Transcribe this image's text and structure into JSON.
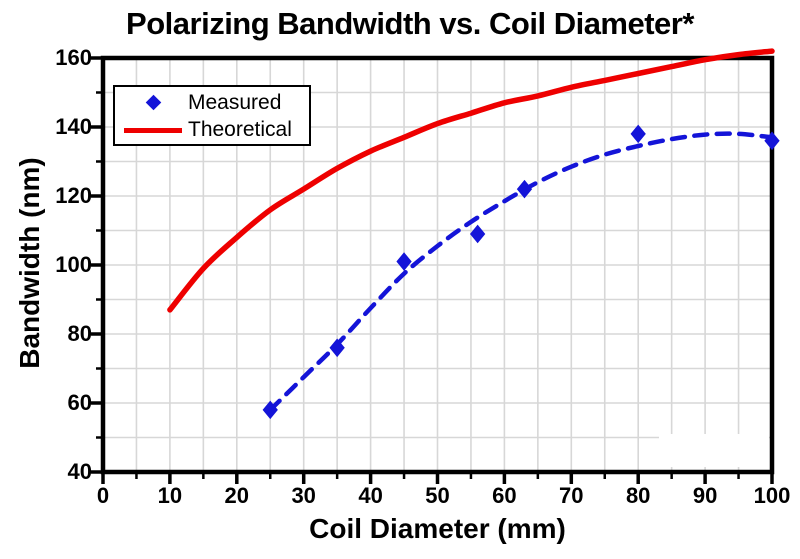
{
  "chart_data": {
    "type": "line",
    "title": "Polarizing Bandwidth vs. Coil Diameter*",
    "xlabel": "Coil Diameter (mm)",
    "ylabel": "Bandwidth (nm)",
    "xlim": [
      0,
      100
    ],
    "ylim": [
      40,
      160
    ],
    "x_tick_labels": [
      "0",
      "10",
      "20",
      "30",
      "40",
      "50",
      "60",
      "70",
      "80",
      "90",
      "100"
    ],
    "x_tick_values": [
      0,
      10,
      20,
      30,
      40,
      50,
      60,
      70,
      80,
      90,
      100
    ],
    "x_minor_tick_values": [
      5,
      15,
      25,
      35,
      45,
      55,
      65,
      75,
      85,
      95
    ],
    "y_tick_labels": [
      "40",
      "60",
      "80",
      "100",
      "120",
      "140",
      "160"
    ],
    "y_tick_values": [
      40,
      60,
      80,
      100,
      120,
      140,
      160
    ],
    "y_minor_tick_values": [
      50,
      70,
      90,
      110,
      130,
      150
    ],
    "grid": {
      "enabled": true,
      "x_step": 5,
      "y_step": 10,
      "color": "#d7d7d7"
    },
    "colors": {
      "measured": "#1414d8",
      "theoretical": "#ee0000",
      "axis": "#000000"
    },
    "legend": {
      "position": "top-left",
      "entries": [
        {
          "label": "Measured",
          "marker": "diamond",
          "color": "#1414d8"
        },
        {
          "label": "Theoretical",
          "marker": "line",
          "color": "#ee0000"
        }
      ]
    },
    "series": [
      {
        "name": "Theoretical",
        "type": "line",
        "line_style": "solid",
        "color": "#ee0000",
        "points": [
          [
            10,
            87
          ],
          [
            15,
            99
          ],
          [
            20,
            108
          ],
          [
            25,
            116
          ],
          [
            30,
            122
          ],
          [
            35,
            128
          ],
          [
            40,
            133
          ],
          [
            45,
            137
          ],
          [
            50,
            141
          ],
          [
            55,
            144
          ],
          [
            60,
            147
          ],
          [
            65,
            149
          ],
          [
            70,
            151.5
          ],
          [
            75,
            153.5
          ],
          [
            80,
            155.5
          ],
          [
            85,
            157.5
          ],
          [
            90,
            159.5
          ],
          [
            95,
            161
          ],
          [
            100,
            162
          ]
        ]
      },
      {
        "name": "Measured fit",
        "type": "line",
        "line_style": "dashed",
        "color": "#1414d8",
        "points": [
          [
            25,
            58
          ],
          [
            30,
            67.5
          ],
          [
            35,
            77
          ],
          [
            40,
            87.5
          ],
          [
            45,
            97.5
          ],
          [
            50,
            105.5
          ],
          [
            55,
            112.5
          ],
          [
            60,
            118.5
          ],
          [
            65,
            124
          ],
          [
            70,
            128.5
          ],
          [
            75,
            132
          ],
          [
            80,
            134.5
          ],
          [
            85,
            136.5
          ],
          [
            90,
            137.8
          ],
          [
            95,
            138
          ],
          [
            100,
            137
          ]
        ]
      },
      {
        "name": "Measured",
        "type": "scatter",
        "marker": "diamond",
        "color": "#1414d8",
        "points": [
          [
            25,
            58
          ],
          [
            35,
            76
          ],
          [
            45,
            101
          ],
          [
            56,
            109
          ],
          [
            63,
            122
          ],
          [
            80,
            138
          ],
          [
            100,
            136
          ]
        ]
      }
    ]
  }
}
